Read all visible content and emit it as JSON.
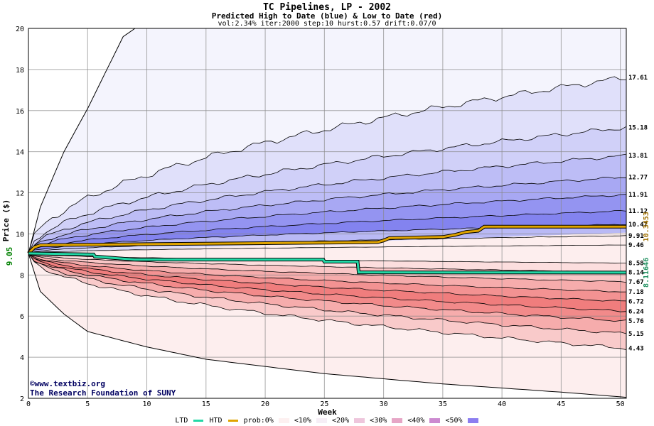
{
  "title": "TC Pipelines, LP - 2002",
  "subtitle": "Predicted High to Date (blue) &  Low to Date (red)",
  "params": "vol:2.34% iter:2000 step:10 hurst:0.57 drift:0.07/0",
  "credits": {
    "line1": "www.textbiz.org",
    "line2": "The Research Foundation of SUNY"
  },
  "legend": {
    "ltd": "LTD",
    "htd": "HTD",
    "prob": "prob:",
    "buckets": [
      "0%",
      "<10%",
      "<20%",
      "<30%",
      "<40%",
      "<50%"
    ]
  },
  "colors": {
    "ltd": "#22d8a6",
    "htd": "#e0a400",
    "grid": "#888888",
    "start_label": "#008000",
    "ltd_label": "#209060",
    "htd_label": "#a07000"
  },
  "chart_data": {
    "type": "area",
    "xlabel": "Week",
    "ylabel": "Price ($)",
    "xlim": [
      0,
      50.5
    ],
    "ylim": [
      2,
      20
    ],
    "xticks": [
      0,
      5,
      10,
      15,
      20,
      25,
      30,
      35,
      40,
      45,
      50
    ],
    "yticks": [
      2,
      4,
      6,
      8,
      10,
      12,
      14,
      16,
      18,
      20
    ],
    "start_price": 9.05,
    "start_label": "9.05",
    "upper_envelope": [
      [
        0,
        9.05
      ],
      [
        1,
        11.3
      ],
      [
        3,
        14
      ],
      [
        5,
        16.1
      ],
      [
        8,
        19.6
      ],
      [
        9,
        20
      ]
    ],
    "lower_envelope": [
      [
        0,
        9.05
      ],
      [
        1,
        7.2
      ],
      [
        3,
        6.1
      ],
      [
        5,
        5.25
      ],
      [
        10,
        4.5
      ],
      [
        15,
        3.9
      ],
      [
        25,
        3.2
      ],
      [
        35,
        2.7
      ],
      [
        45,
        2.3
      ],
      [
        50.5,
        2.05
      ]
    ],
    "high_bands": [
      {
        "label": "17.61",
        "end": 17.61
      },
      {
        "label": "15.18",
        "end": 15.18
      },
      {
        "label": "13.81",
        "end": 13.81
      },
      {
        "label": "12.77",
        "end": 12.77
      },
      {
        "label": "11.91",
        "end": 11.91
      },
      {
        "label": "11.12",
        "end": 11.12
      },
      {
        "label": "10.47",
        "end": 10.47
      },
      {
        "label": "9.91",
        "end": 9.91
      },
      {
        "label": "9.46",
        "end": 9.46
      }
    ],
    "low_bands": [
      {
        "label": "8.58",
        "end": 8.58
      },
      {
        "label": "8.14",
        "end": 8.14
      },
      {
        "label": "7.67",
        "end": 7.67
      },
      {
        "label": "7.18",
        "end": 7.18
      },
      {
        "label": "6.72",
        "end": 6.72
      },
      {
        "label": "6.24",
        "end": 6.24
      },
      {
        "label": "5.76",
        "end": 5.76
      },
      {
        "label": "5.15",
        "end": 5.15
      },
      {
        "label": "4.43",
        "end": 4.43
      }
    ],
    "series": [
      {
        "name": "HTD",
        "end_label": "10.3453",
        "points": [
          [
            0,
            9.05
          ],
          [
            0.5,
            9.35
          ],
          [
            1,
            9.45
          ],
          [
            10,
            9.5
          ],
          [
            20,
            9.55
          ],
          [
            29.5,
            9.6
          ],
          [
            30,
            9.68
          ],
          [
            30.5,
            9.8
          ],
          [
            35,
            9.85
          ],
          [
            36,
            9.95
          ],
          [
            37,
            10.1
          ],
          [
            38,
            10.15
          ],
          [
            38.5,
            10.35
          ],
          [
            50.5,
            10.35
          ]
        ]
      },
      {
        "name": "LTD",
        "end_label": "8.11646",
        "points": [
          [
            0,
            9.05
          ],
          [
            5.5,
            9.0
          ],
          [
            5.6,
            8.9
          ],
          [
            9,
            8.75
          ],
          [
            24.9,
            8.75
          ],
          [
            25,
            8.65
          ],
          [
            27.8,
            8.65
          ],
          [
            27.9,
            8.13
          ],
          [
            50.5,
            8.12
          ]
        ]
      }
    ]
  }
}
